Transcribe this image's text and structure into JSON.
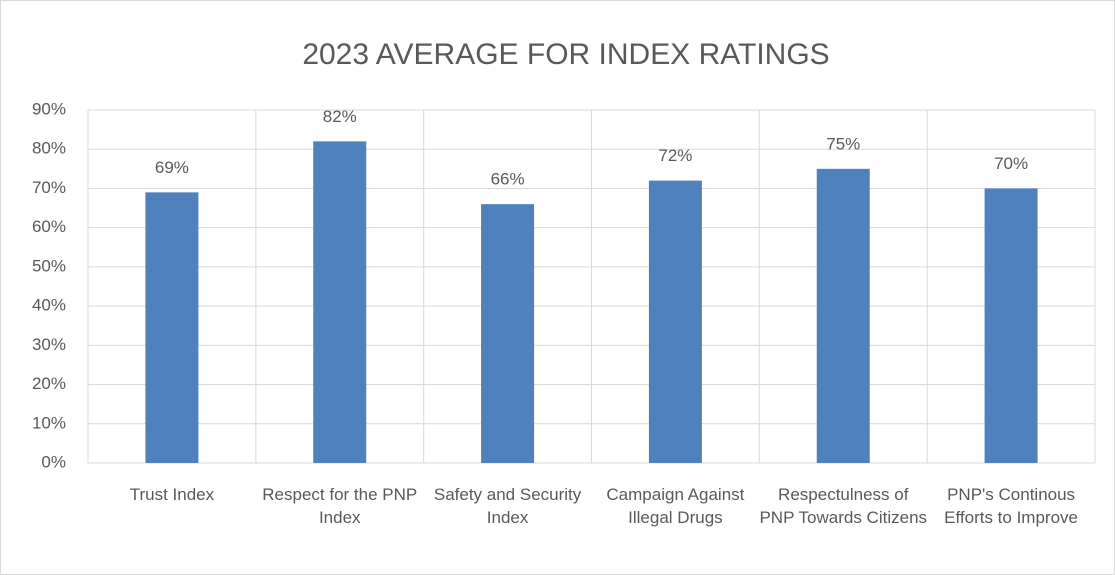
{
  "chart_data": {
    "type": "bar",
    "title": "2023 AVERAGE FOR INDEX RATINGS",
    "categories": [
      "Trust Index",
      "Respect for the PNP Index",
      "Safety and Security Index",
      "Campaign Against Illegal Drugs",
      "Respectulness of PNP Towards Citizens",
      "PNP's Continous Efforts to Improve"
    ],
    "values": [
      69,
      82,
      66,
      72,
      75,
      70
    ],
    "value_labels": [
      "69%",
      "82%",
      "66%",
      "72%",
      "75%",
      "70%"
    ],
    "color": "#4f81bd",
    "ylim": [
      0,
      90
    ],
    "yticks": [
      {
        "value": 0,
        "label": "0%"
      },
      {
        "value": 10,
        "label": "10%"
      },
      {
        "value": 20,
        "label": "20%"
      },
      {
        "value": 30,
        "label": "30%"
      },
      {
        "value": 40,
        "label": "40%"
      },
      {
        "value": 50,
        "label": "50%"
      },
      {
        "value": 60,
        "label": "60%"
      },
      {
        "value": 70,
        "label": "70%"
      },
      {
        "value": 80,
        "label": "80%"
      },
      {
        "value": 90,
        "label": "90%"
      }
    ],
    "grid": true
  }
}
